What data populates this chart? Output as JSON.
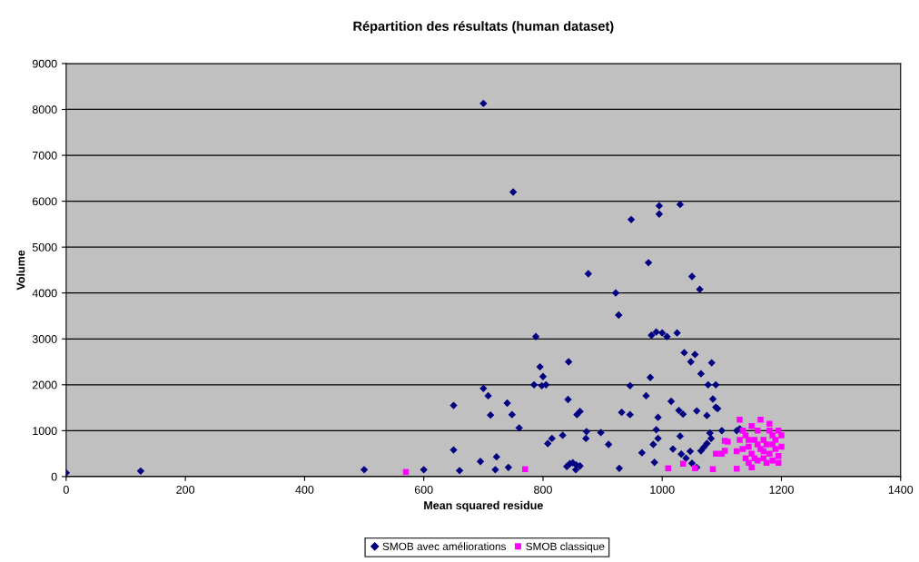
{
  "chart_data": {
    "type": "scatter",
    "title": "Répartition des résultats (human dataset)",
    "xlabel": "Mean squared residue",
    "ylabel": "Volume",
    "xlim": [
      0,
      1400
    ],
    "xticks": [
      0,
      200,
      400,
      600,
      800,
      1000,
      1200,
      1400
    ],
    "ylim": [
      0,
      9000
    ],
    "yticks": [
      0,
      1000,
      2000,
      3000,
      4000,
      5000,
      6000,
      7000,
      8000,
      9000
    ],
    "grid": "y",
    "legend": "bottom",
    "series": [
      {
        "name": "SMOB avec améliorations",
        "color": "#000080",
        "marker": "diamond",
        "x": [
          0,
          125,
          500,
          600,
          650,
          650,
          660,
          695,
          700,
          700,
          708,
          712,
          720,
          722,
          740,
          742,
          748,
          750,
          760,
          785,
          788,
          795,
          800,
          798,
          805,
          808,
          815,
          833,
          840,
          842,
          843,
          845,
          850,
          855,
          856,
          857,
          862,
          862,
          872,
          873,
          876,
          897,
          910,
          922,
          927,
          928,
          932,
          946,
          946,
          948,
          966,
          973,
          977,
          980,
          982,
          985,
          987,
          990,
          990,
          993,
          993,
          995,
          995,
          1000,
          1008,
          1015,
          1018,
          1025,
          1028,
          1030,
          1030,
          1032,
          1035,
          1037,
          1040,
          1047,
          1048,
          1050,
          1050,
          1055,
          1058,
          1058,
          1063,
          1065,
          1065,
          1070,
          1075,
          1075,
          1077,
          1080,
          1082,
          1083,
          1085,
          1090,
          1090,
          1093,
          1100,
          1125,
          1130
        ],
        "values": [
          80,
          120,
          150,
          150,
          1550,
          580,
          130,
          330,
          8130,
          1920,
          1760,
          1340,
          150,
          430,
          1600,
          200,
          1350,
          6200,
          1060,
          2000,
          3050,
          2390,
          2180,
          1980,
          2000,
          720,
          830,
          900,
          220,
          1680,
          2500,
          280,
          300,
          150,
          250,
          1350,
          1420,
          230,
          830,
          980,
          4420,
          960,
          700,
          4000,
          3520,
          180,
          1400,
          1980,
          1350,
          5600,
          520,
          1760,
          4660,
          2160,
          3080,
          700,
          310,
          3150,
          1020,
          830,
          1290,
          5900,
          5720,
          3130,
          3050,
          1640,
          600,
          3130,
          1440,
          5930,
          880,
          490,
          1360,
          2700,
          400,
          550,
          2500,
          4360,
          290,
          2660,
          200,
          1430,
          4080,
          560,
          2240,
          640,
          720,
          1330,
          2000,
          950,
          830,
          2480,
          1690,
          1510,
          2000,
          1480,
          1000,
          1000,
          1040
        ]
      },
      {
        "name": "SMOB classique",
        "color": "#ff00ff",
        "marker": "square",
        "x": [
          570,
          770,
          1010,
          1035,
          1055,
          1085,
          1090,
          1100,
          1105,
          1110,
          1105,
          1125,
          1130,
          1130,
          1135,
          1140,
          1140,
          1145,
          1145,
          1150,
          1150,
          1150,
          1155,
          1160,
          1160,
          1165,
          1165,
          1170,
          1170,
          1175,
          1175,
          1180,
          1180,
          1180,
          1185,
          1185,
          1190,
          1190,
          1195,
          1195,
          1195,
          1200,
          1200,
          1125,
          1135,
          1160,
          1170,
          1185,
          1155,
          1145
        ],
        "values": [
          100,
          160,
          180,
          280,
          180,
          160,
          500,
          500,
          780,
          760,
          560,
          170,
          1240,
          800,
          600,
          400,
          900,
          300,
          650,
          200,
          1100,
          500,
          800,
          350,
          1000,
          600,
          1240,
          400,
          800,
          700,
          300,
          1000,
          1150,
          500,
          900,
          350,
          600,
          800,
          300,
          1000,
          450,
          650,
          900,
          550,
          1000,
          700,
          550,
          700,
          400,
          800
        ]
      }
    ]
  }
}
